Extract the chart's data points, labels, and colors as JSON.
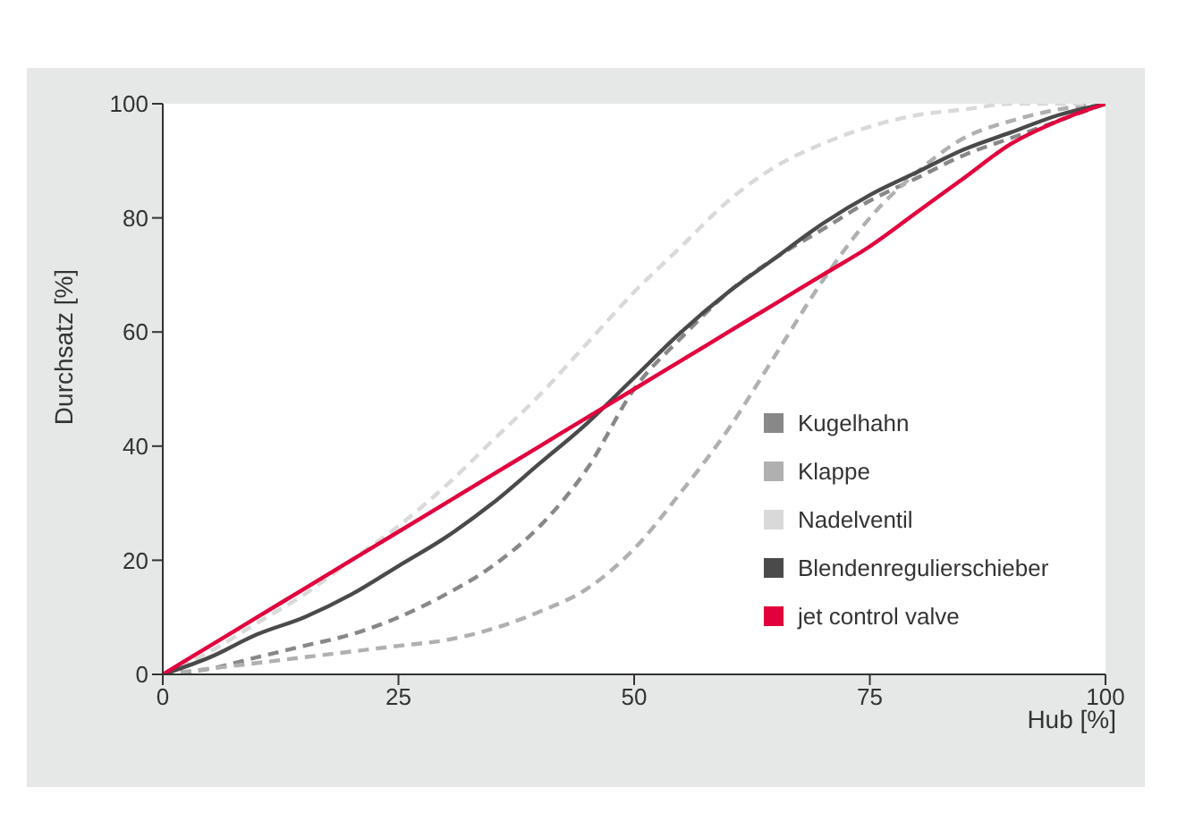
{
  "chart_data": {
    "type": "line",
    "xlabel": "Hub [%]",
    "ylabel": "Durchsatz [%]",
    "x": [
      0,
      5,
      10,
      15,
      20,
      25,
      30,
      35,
      40,
      45,
      50,
      55,
      60,
      65,
      70,
      75,
      80,
      85,
      90,
      95,
      100
    ],
    "series": [
      {
        "name": "Kugelhahn",
        "color": "#888888",
        "line_style": "dashed",
        "values": [
          0,
          1,
          3,
          5,
          7,
          10,
          14,
          19,
          26,
          36,
          50,
          59,
          67,
          73,
          78,
          83,
          87,
          91,
          94,
          97,
          100
        ]
      },
      {
        "name": "Klappe",
        "color": "#b0b0b0",
        "line_style": "dashed",
        "values": [
          0,
          1,
          2,
          3,
          4,
          5,
          6,
          8,
          11,
          15,
          22,
          32,
          43,
          56,
          69,
          80,
          88,
          94,
          97,
          99,
          100
        ]
      },
      {
        "name": "Nadelventil",
        "color": "#d9d9d9",
        "line_style": "dashed",
        "values": [
          0,
          4,
          9,
          14,
          20,
          26,
          33,
          41,
          49,
          58,
          67,
          75,
          83,
          89,
          93,
          96,
          98,
          99,
          100,
          100,
          100
        ]
      },
      {
        "name": "Blendenregulierschieber",
        "color": "#4a4a4a",
        "line_style": "solid",
        "values": [
          0,
          3,
          7,
          10,
          14,
          19,
          24,
          30,
          37,
          44,
          52,
          60,
          67,
          73,
          79,
          84,
          88,
          92,
          95,
          98,
          100
        ]
      },
      {
        "name": "jet control valve",
        "color": "#e2003d",
        "line_style": "solid",
        "values": [
          0,
          5,
          10,
          15,
          20,
          25,
          30,
          35,
          40,
          45,
          50,
          55,
          60,
          65,
          70,
          75,
          81,
          87,
          93,
          97,
          100
        ]
      }
    ],
    "xlim": [
      0,
      100
    ],
    "xticks": [
      0,
      25,
      50,
      75,
      100
    ],
    "ylim": [
      0,
      100
    ],
    "yticks": [
      0,
      20,
      40,
      60,
      80,
      100
    ],
    "grid": false,
    "legend": "bottom right",
    "marker": "none"
  }
}
